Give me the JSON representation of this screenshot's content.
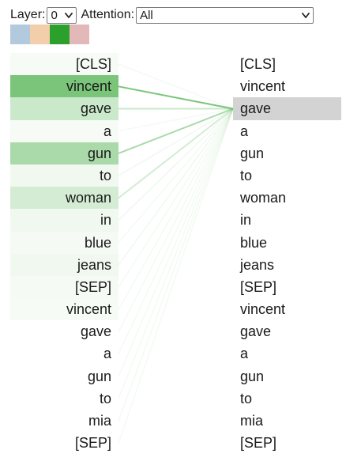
{
  "controls": {
    "layer_label": "Layer:",
    "layer_value": "0",
    "attention_label": "Attention:",
    "attention_value": "All"
  },
  "head_colors": [
    "#b3c9de",
    "#f2ceaa",
    "#2ca02c",
    "#e2b8b8"
  ],
  "accent_color": "#6cbf6c",
  "selected_token_bg": "#d3d3d3",
  "selected_right_index": 2,
  "left_tokens": [
    {
      "text": "[CLS]",
      "weight": 0.06
    },
    {
      "text": "vincent",
      "weight": 0.9
    },
    {
      "text": "gave",
      "weight": 0.36
    },
    {
      "text": "a",
      "weight": 0.06
    },
    {
      "text": "gun",
      "weight": 0.58
    },
    {
      "text": "to",
      "weight": 0.1
    },
    {
      "text": "woman",
      "weight": 0.3
    },
    {
      "text": "in",
      "weight": 0.1
    },
    {
      "text": "blue",
      "weight": 0.07
    },
    {
      "text": "jeans",
      "weight": 0.1
    },
    {
      "text": "[SEP]",
      "weight": 0.07
    },
    {
      "text": "vincent",
      "weight": 0.06
    },
    {
      "text": "gave",
      "weight": 0.0
    },
    {
      "text": "a",
      "weight": 0.0
    },
    {
      "text": "gun",
      "weight": 0.0
    },
    {
      "text": "to",
      "weight": 0.0
    },
    {
      "text": "mia",
      "weight": 0.0
    },
    {
      "text": "[SEP]",
      "weight": 0.0
    }
  ],
  "right_tokens": [
    {
      "text": "[CLS]"
    },
    {
      "text": "vincent"
    },
    {
      "text": "gave"
    },
    {
      "text": "a"
    },
    {
      "text": "gun"
    },
    {
      "text": "to"
    },
    {
      "text": "woman"
    },
    {
      "text": "in"
    },
    {
      "text": "blue"
    },
    {
      "text": "jeans"
    },
    {
      "text": "[SEP]"
    },
    {
      "text": "vincent"
    },
    {
      "text": "gave"
    },
    {
      "text": "a"
    },
    {
      "text": "gun"
    },
    {
      "text": "to"
    },
    {
      "text": "mia"
    },
    {
      "text": "[SEP]"
    }
  ]
}
